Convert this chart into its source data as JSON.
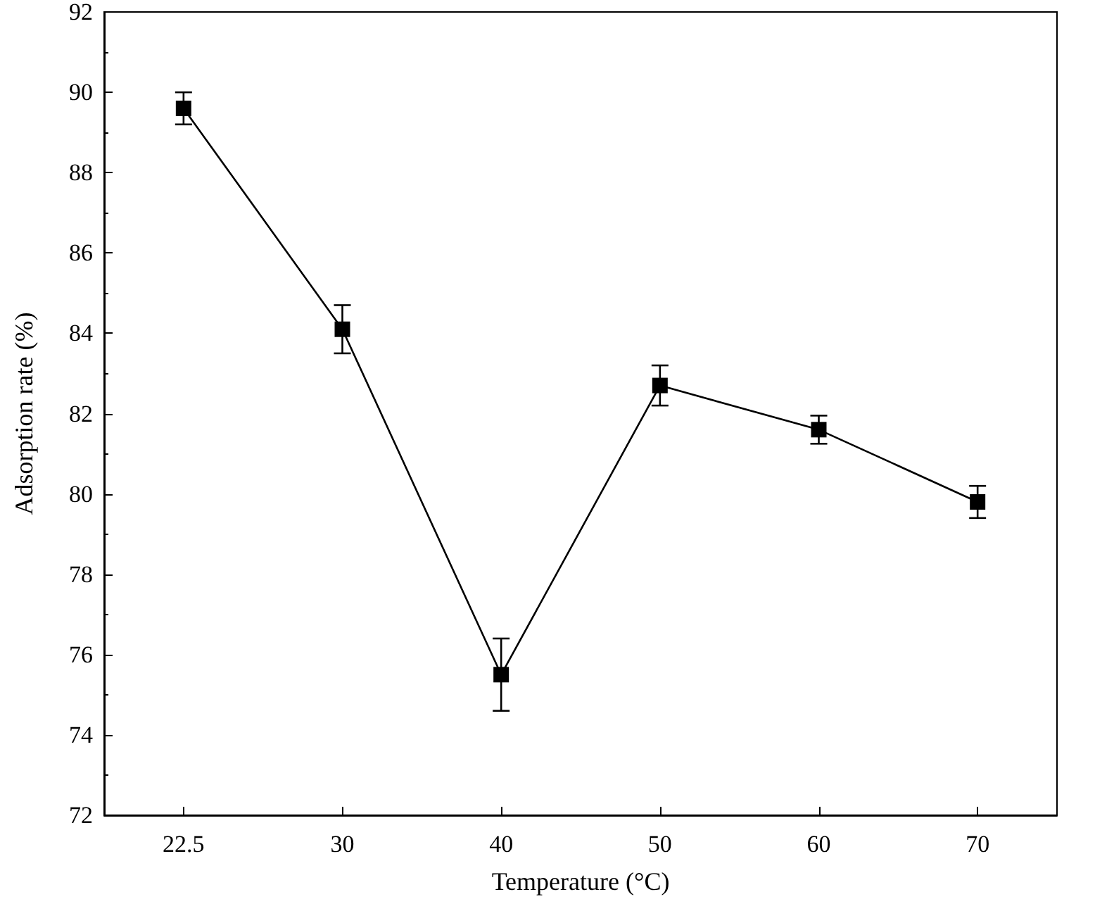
{
  "chart_data": {
    "type": "line",
    "xlabel": "Temperature (°C)",
    "ylabel": "Adsorption rate (%)",
    "categories": [
      "22.5",
      "30",
      "40",
      "50",
      "60",
      "70"
    ],
    "series": [
      {
        "color": "#000000",
        "values": [
          89.6,
          84.1,
          75.5,
          82.7,
          81.6,
          79.8
        ],
        "errors": [
          0.4,
          0.6,
          0.9,
          0.5,
          0.35,
          0.4
        ]
      }
    ],
    "ylim": [
      72,
      92
    ],
    "yticks": [
      72,
      74,
      76,
      78,
      80,
      82,
      84,
      86,
      88,
      90,
      92
    ],
    "marker": "square",
    "line_style": "solid",
    "grid": false
  }
}
